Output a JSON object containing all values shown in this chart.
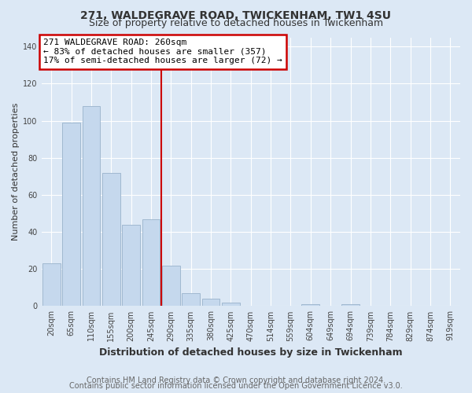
{
  "title": "271, WALDEGRAVE ROAD, TWICKENHAM, TW1 4SU",
  "subtitle": "Size of property relative to detached houses in Twickenham",
  "xlabel": "Distribution of detached houses by size in Twickenham",
  "ylabel": "Number of detached properties",
  "categories": [
    "20sqm",
    "65sqm",
    "110sqm",
    "155sqm",
    "200sqm",
    "245sqm",
    "290sqm",
    "335sqm",
    "380sqm",
    "425sqm",
    "470sqm",
    "514sqm",
    "559sqm",
    "604sqm",
    "649sqm",
    "694sqm",
    "739sqm",
    "784sqm",
    "829sqm",
    "874sqm",
    "919sqm"
  ],
  "values": [
    23,
    99,
    108,
    72,
    44,
    47,
    22,
    7,
    4,
    2,
    0,
    0,
    0,
    1,
    0,
    1,
    0,
    0,
    0,
    0,
    0
  ],
  "bar_color": "#c5d8ed",
  "bar_edgecolor": "#a0b8d0",
  "vline_x": 5.5,
  "vline_color": "#cc0000",
  "annotation_line1": "271 WALDEGRAVE ROAD: 260sqm",
  "annotation_line2": "← 83% of detached houses are smaller (357)",
  "annotation_line3": "17% of semi-detached houses are larger (72) →",
  "annotation_box_color": "#cc0000",
  "annotation_bg": "#ffffff",
  "ylim": [
    0,
    145
  ],
  "yticks": [
    0,
    20,
    40,
    60,
    80,
    100,
    120,
    140
  ],
  "background_color": "#dce8f5",
  "grid_color": "#ffffff",
  "footer_line1": "Contains HM Land Registry data © Crown copyright and database right 2024.",
  "footer_line2": "Contains public sector information licensed under the Open Government Licence v3.0.",
  "title_fontsize": 10,
  "subtitle_fontsize": 9,
  "xlabel_fontsize": 9,
  "ylabel_fontsize": 8,
  "tick_fontsize": 7,
  "annotation_fontsize": 8,
  "footer_fontsize": 7
}
